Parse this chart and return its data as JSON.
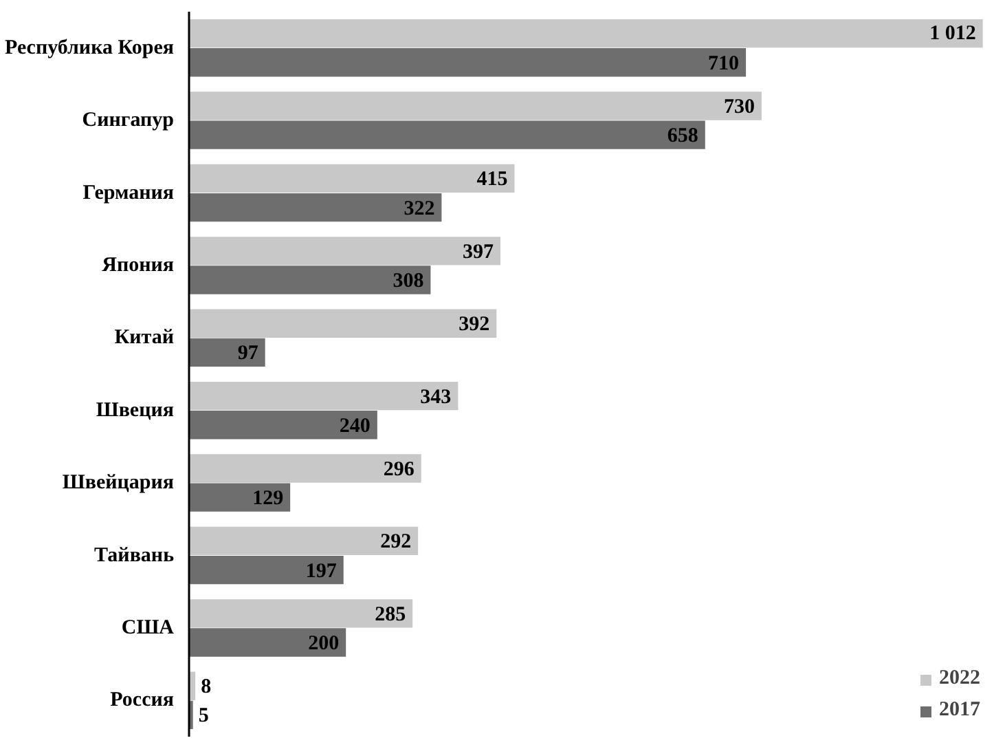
{
  "chart_data": {
    "type": "bar",
    "orientation": "horizontal",
    "categories": [
      "Республика Корея",
      "Сингапур",
      "Германия",
      "Япония",
      "Китай",
      "Швеция",
      "Швейцария",
      "Тайвань",
      "США",
      "Россия"
    ],
    "series": [
      {
        "name": "2022",
        "color": "#c8c8c8",
        "values": [
          1012,
          730,
          415,
          397,
          392,
          343,
          296,
          292,
          285,
          8
        ],
        "value_labels": [
          "1 012",
          "730",
          "415",
          "397",
          "392",
          "343",
          "296",
          "292",
          "285",
          "8"
        ]
      },
      {
        "name": "2017",
        "color": "#6e6e6e",
        "values": [
          710,
          658,
          322,
          308,
          97,
          240,
          129,
          197,
          200,
          5
        ],
        "value_labels": [
          "710",
          "658",
          "322",
          "308",
          "97",
          "240",
          "129",
          "197",
          "200",
          "5"
        ]
      }
    ],
    "legend": "bottom right",
    "grid": false
  }
}
